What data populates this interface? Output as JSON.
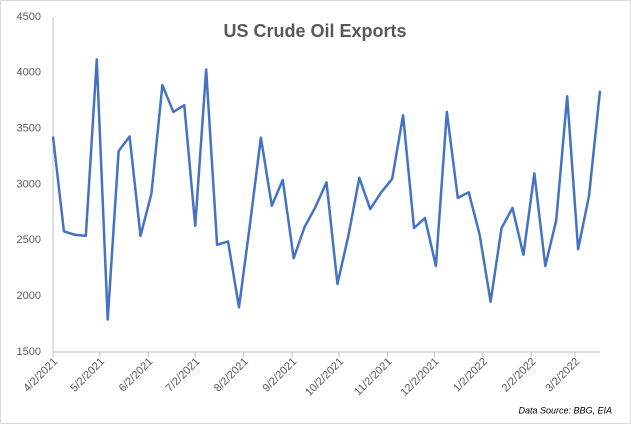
{
  "chart_data": {
    "type": "line",
    "title": "US Crude Oil Exports",
    "annotation": "Data Source: BBG, EIA",
    "x": [
      "4/2/2021",
      "4/9/2021",
      "4/16/2021",
      "4/23/2021",
      "4/30/2021",
      "5/7/2021",
      "5/14/2021",
      "5/21/2021",
      "5/28/2021",
      "6/4/2021",
      "6/11/2021",
      "6/18/2021",
      "6/25/2021",
      "7/2/2021",
      "7/9/2021",
      "7/16/2021",
      "7/23/2021",
      "7/30/2021",
      "8/6/2021",
      "8/13/2021",
      "8/20/2021",
      "8/27/2021",
      "9/3/2021",
      "9/10/2021",
      "9/17/2021",
      "9/24/2021",
      "10/1/2021",
      "10/8/2021",
      "10/15/2021",
      "10/22/2021",
      "10/29/2021",
      "11/5/2021",
      "11/12/2021",
      "11/19/2021",
      "11/26/2021",
      "12/3/2021",
      "12/10/2021",
      "12/17/2021",
      "12/24/2021",
      "12/31/2021",
      "1/7/2022",
      "1/14/2022",
      "1/21/2022",
      "1/28/2022",
      "2/4/2022",
      "2/11/2022",
      "2/18/2022",
      "2/25/2022",
      "3/4/2022",
      "3/11/2022",
      "3/18/2022"
    ],
    "series": [
      {
        "name": "US Crude Oil Exports",
        "color": "#4472c4",
        "values": [
          3430,
          2580,
          2550,
          2540,
          4120,
          1790,
          3300,
          3430,
          2540,
          2920,
          3890,
          3650,
          3710,
          2630,
          4030,
          2460,
          2490,
          1900,
          2640,
          3420,
          2810,
          3040,
          2340,
          2620,
          2800,
          3020,
          2110,
          2540,
          3060,
          2780,
          2930,
          3050,
          3620,
          2610,
          2700,
          2270,
          3650,
          2880,
          2930,
          2550,
          1950,
          2610,
          2790,
          2370,
          3100,
          2270,
          2680,
          3790,
          2420,
          2900,
          3840
        ]
      }
    ],
    "xlim": [
      "4/2/2021",
      "3/18/2022"
    ],
    "xticks": [
      "4/2/2021",
      "5/2/2021",
      "6/2/2021",
      "7/2/2021",
      "8/2/2021",
      "9/2/2021",
      "10/2/2021",
      "11/2/2021",
      "12/2/2021",
      "1/2/2022",
      "2/2/2022",
      "3/2/2022"
    ],
    "ylim": [
      1500,
      4500
    ],
    "yticks": [
      1500,
      2000,
      2500,
      3000,
      3500,
      4000,
      4500
    ],
    "grid": false
  }
}
